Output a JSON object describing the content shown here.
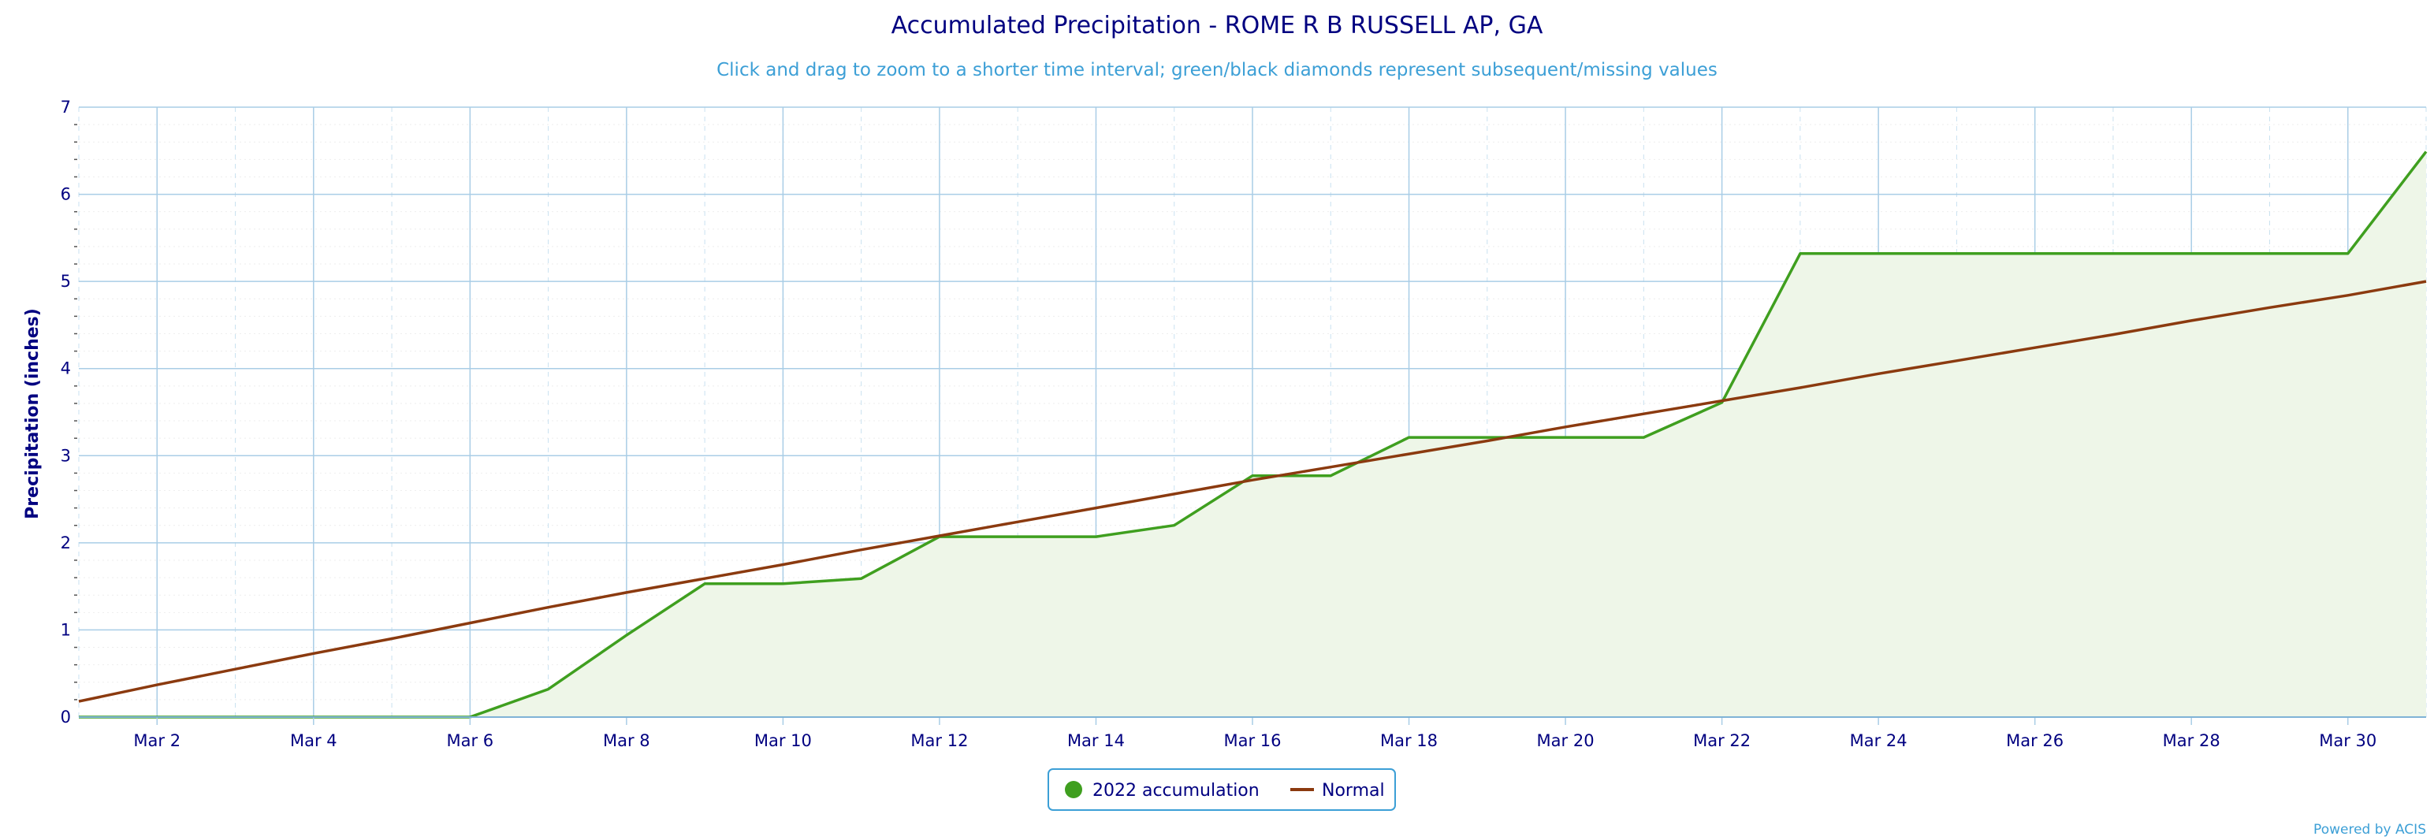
{
  "chart_data": {
    "type": "line",
    "title": "Accumulated Precipitation - ROME R B RUSSELL AP, GA",
    "subtitle": "Click and drag to zoom to a shorter time interval; green/black diamonds represent subsequent/missing values",
    "ylabel": "Precipitation (inches)",
    "xlabel": "",
    "xlim": [
      1,
      31
    ],
    "ylim": [
      0,
      7
    ],
    "y_ticks": [
      "0",
      "1",
      "2",
      "3",
      "4",
      "5",
      "6",
      "7"
    ],
    "x_ticks": [
      {
        "day": 2,
        "label": "Mar 2"
      },
      {
        "day": 4,
        "label": "Mar 4"
      },
      {
        "day": 6,
        "label": "Mar 6"
      },
      {
        "day": 8,
        "label": "Mar 8"
      },
      {
        "day": 10,
        "label": "Mar 10"
      },
      {
        "day": 12,
        "label": "Mar 12"
      },
      {
        "day": 14,
        "label": "Mar 14"
      },
      {
        "day": 16,
        "label": "Mar 16"
      },
      {
        "day": 18,
        "label": "Mar 18"
      },
      {
        "day": 20,
        "label": "Mar 20"
      },
      {
        "day": 22,
        "label": "Mar 22"
      },
      {
        "day": 24,
        "label": "Mar 24"
      },
      {
        "day": 26,
        "label": "Mar 26"
      },
      {
        "day": 28,
        "label": "Mar 28"
      },
      {
        "day": 30,
        "label": "Mar 30"
      }
    ],
    "grid": true,
    "legend_position": "bottom-center",
    "series": [
      {
        "name": "2022 accumulation",
        "color": "#3f9f1f",
        "fill": "#eef6e8",
        "x": [
          1,
          2,
          3,
          4,
          5,
          6,
          7,
          8,
          9,
          10,
          11,
          12,
          13,
          14,
          15,
          16,
          17,
          18,
          19,
          20,
          21,
          22,
          23,
          24,
          25,
          26,
          27,
          28,
          29,
          30,
          31
        ],
        "values": [
          0,
          0,
          0,
          0,
          0,
          0,
          0.32,
          0.94,
          1.53,
          1.53,
          1.59,
          2.07,
          2.07,
          2.07,
          2.2,
          2.77,
          2.77,
          3.21,
          3.21,
          3.21,
          3.21,
          3.61,
          5.32,
          5.32,
          5.32,
          5.32,
          5.32,
          5.32,
          5.32,
          5.32,
          6.49
        ]
      },
      {
        "name": "Normal",
        "color": "#8b3a0f",
        "x": [
          1,
          2,
          3,
          4,
          5,
          6,
          7,
          8,
          9,
          10,
          11,
          12,
          13,
          14,
          15,
          16,
          17,
          18,
          19,
          20,
          21,
          22,
          23,
          24,
          25,
          26,
          27,
          28,
          29,
          30,
          31
        ],
        "values": [
          0.18,
          0.37,
          0.55,
          0.73,
          0.9,
          1.08,
          1.26,
          1.43,
          1.59,
          1.75,
          1.92,
          2.08,
          2.24,
          2.4,
          2.56,
          2.72,
          2.87,
          3.02,
          3.17,
          3.33,
          3.48,
          3.63,
          3.78,
          3.94,
          4.09,
          4.24,
          4.39,
          4.55,
          4.7,
          4.84,
          5.0
        ]
      }
    ]
  },
  "credit": "Powered by ACIS"
}
